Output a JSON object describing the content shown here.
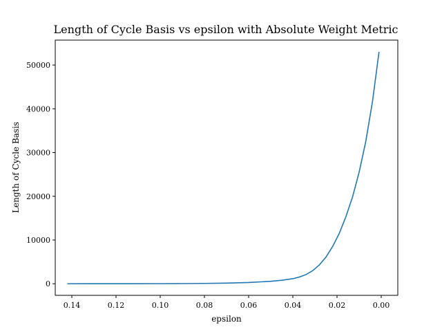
{
  "chart_data": {
    "type": "line",
    "title": "Length of Cycle Basis vs epsilon with Absolute Weight Metric",
    "xlabel": "epsilon",
    "ylabel": "Length of Cycle Basis",
    "xlim": [
      0.1475,
      -0.0075
    ],
    "ylim": [
      -2650,
      55700
    ],
    "x_reversed": true,
    "grid": false,
    "xticks": [
      0.14,
      0.12,
      0.1,
      0.08,
      0.06,
      0.04,
      0.02,
      0.0
    ],
    "xtick_labels": [
      "0.14",
      "0.12",
      "0.10",
      "0.08",
      "0.06",
      "0.04",
      "0.02",
      "0.00"
    ],
    "yticks": [
      0,
      10000,
      20000,
      30000,
      40000,
      50000
    ],
    "ytick_labels": [
      "0",
      "10000",
      "20000",
      "30000",
      "40000",
      "50000"
    ],
    "colors": {
      "series": "#1f77b4"
    },
    "series": [
      {
        "x": [
          0.142,
          0.13,
          0.12,
          0.11,
          0.1,
          0.09,
          0.08,
          0.07,
          0.06,
          0.05,
          0.045,
          0.04,
          0.037,
          0.034,
          0.031,
          0.028,
          0.025,
          0.022,
          0.019,
          0.016,
          0.013,
          0.01,
          0.007,
          0.004,
          0.001
        ],
        "y": [
          1,
          2,
          5,
          10,
          20,
          40,
          80,
          150,
          280,
          560,
          800,
          1150,
          1550,
          2100,
          3000,
          4300,
          6100,
          8500,
          11500,
          15300,
          19800,
          25500,
          32500,
          41500,
          53000
        ]
      }
    ]
  }
}
